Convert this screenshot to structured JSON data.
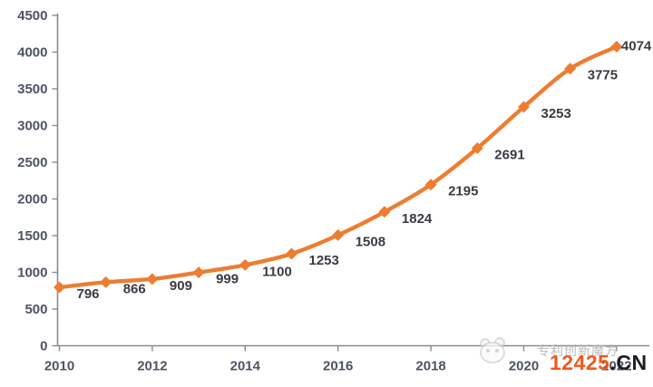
{
  "watermark": {
    "tagline": "专利创新魔方",
    "site_number": "12425",
    "site_tld": ".CN",
    "number_color": "#f2581d",
    "tld_color": "#1c1c24",
    "tagline_color": "#b3b3b3"
  },
  "chart_data": {
    "type": "line",
    "title": "",
    "xlabel": "",
    "ylabel": "",
    "x": [
      2010,
      2011,
      2012,
      2013,
      2014,
      2015,
      2016,
      2017,
      2018,
      2019,
      2020,
      2021,
      2022
    ],
    "values": [
      796,
      866,
      909,
      999,
      1100,
      1253,
      1508,
      1824,
      2195,
      2691,
      3253,
      3775,
      4074
    ],
    "data_labels": [
      "796",
      "866",
      "909",
      "999",
      "1100",
      "1253",
      "1508",
      "1824",
      "2195",
      "2691",
      "3253",
      "3775",
      "4074"
    ],
    "x_tick_labels": [
      "2010",
      "2012",
      "2014",
      "2016",
      "2018",
      "2020",
      "2022"
    ],
    "x_tick_years": [
      2010,
      2012,
      2014,
      2016,
      2018,
      2020,
      2022
    ],
    "y_tick_labels": [
      "0",
      "500",
      "1000",
      "1500",
      "2000",
      "2500",
      "3000",
      "3500",
      "4000",
      "4500"
    ],
    "y_tick_values": [
      0,
      500,
      1000,
      1500,
      2000,
      2500,
      3000,
      3500,
      4000,
      4500
    ],
    "ylim": [
      0,
      4500
    ],
    "smooth": true,
    "marker": "diamond",
    "grid": false,
    "legend": false,
    "series_color": "#ED7D31",
    "axis_color": "#8a8a8a",
    "tick_label_color": "#4d5362",
    "data_label_color": "#3a3a42"
  }
}
